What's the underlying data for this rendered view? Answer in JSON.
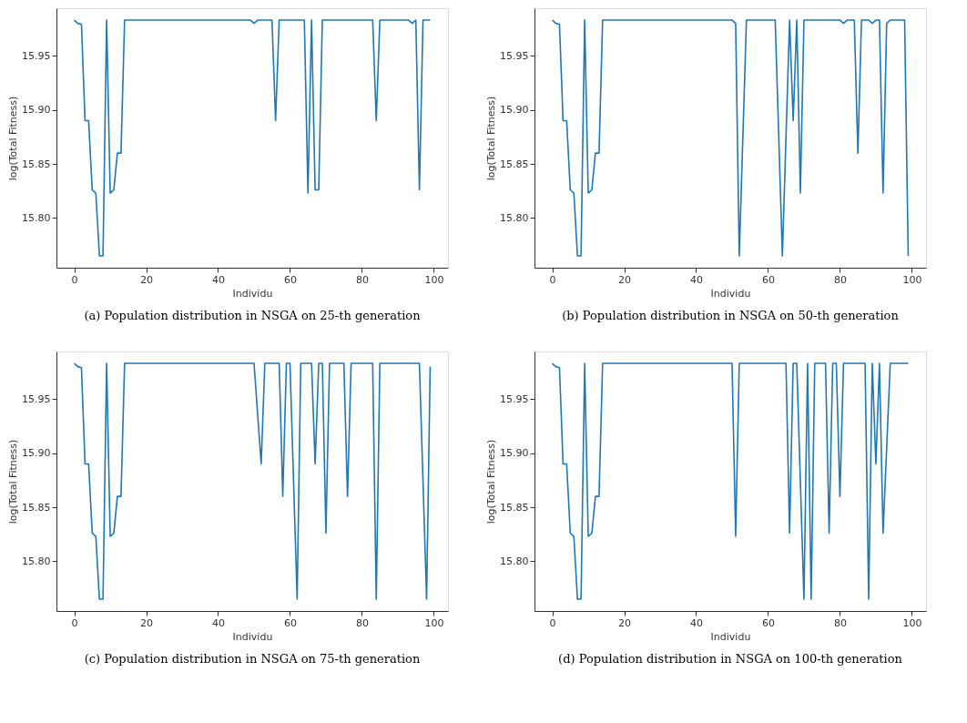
{
  "chart_data": [
    {
      "type": "line",
      "xlabel": "Individu",
      "ylabel": "log(Total Fitness)",
      "annotations": [
        "(a) Population distribution in NSGA on 25-th generation"
      ],
      "xlim": [
        -4.95,
        103.95
      ],
      "ylim": [
        15.754,
        15.994
      ],
      "xticks": [
        0,
        20,
        40,
        60,
        80,
        100
      ],
      "yticks": [
        {
          "value": 15.8,
          "label": "15.80"
        },
        {
          "value": 15.85,
          "label": "15.85"
        },
        {
          "value": 15.9,
          "label": "15.90"
        },
        {
          "value": 15.95,
          "label": "15.95"
        }
      ],
      "grid": false,
      "marker": "none",
      "line_style": "solid",
      "series": [
        {
          "color": "#1f77b4",
          "x": [
            0,
            1,
            2,
            3,
            4,
            5,
            6,
            7,
            8,
            9,
            10,
            11,
            12,
            13,
            14,
            49,
            50,
            51,
            55,
            56,
            57,
            64,
            65,
            66,
            67,
            68,
            69,
            83,
            84,
            85,
            93,
            94,
            95,
            96,
            97,
            99
          ],
          "values": [
            15.983,
            15.98,
            15.979,
            15.89,
            15.89,
            15.826,
            15.823,
            15.765,
            15.765,
            15.983,
            15.823,
            15.826,
            15.86,
            15.86,
            15.983,
            15.983,
            15.98,
            15.983,
            15.983,
            15.89,
            15.983,
            15.983,
            15.823,
            15.983,
            15.826,
            15.826,
            15.983,
            15.983,
            15.89,
            15.983,
            15.983,
            15.98,
            15.983,
            15.826,
            15.983,
            15.983
          ]
        }
      ]
    },
    {
      "type": "line",
      "xlabel": "Individu",
      "ylabel": "log(Total Fitness)",
      "annotations": [
        "(b) Population distribution in NSGA on 50-th generation"
      ],
      "xlim": [
        -4.95,
        103.95
      ],
      "ylim": [
        15.754,
        15.994
      ],
      "xticks": [
        0,
        20,
        40,
        60,
        80,
        100
      ],
      "yticks": [
        {
          "value": 15.8,
          "label": "15.80"
        },
        {
          "value": 15.85,
          "label": "15.85"
        },
        {
          "value": 15.9,
          "label": "15.90"
        },
        {
          "value": 15.95,
          "label": "15.95"
        }
      ],
      "grid": false,
      "marker": "none",
      "line_style": "solid",
      "series": [
        {
          "color": "#1f77b4",
          "x": [
            0,
            1,
            2,
            3,
            4,
            5,
            6,
            7,
            8,
            9,
            10,
            11,
            12,
            13,
            14,
            50,
            51,
            52,
            54,
            62,
            64,
            66,
            67,
            68,
            69,
            70,
            80,
            81,
            82,
            84,
            85,
            86,
            88,
            89,
            90,
            91,
            92,
            93,
            94,
            98,
            99
          ],
          "values": [
            15.983,
            15.98,
            15.979,
            15.89,
            15.89,
            15.826,
            15.823,
            15.765,
            15.765,
            15.983,
            15.823,
            15.826,
            15.86,
            15.86,
            15.983,
            15.983,
            15.98,
            15.765,
            15.983,
            15.983,
            15.765,
            15.983,
            15.89,
            15.983,
            15.823,
            15.983,
            15.983,
            15.98,
            15.983,
            15.983,
            15.86,
            15.983,
            15.983,
            15.98,
            15.983,
            15.983,
            15.823,
            15.98,
            15.983,
            15.983,
            15.765
          ]
        }
      ]
    },
    {
      "type": "line",
      "xlabel": "Individu",
      "ylabel": "log(Total Fitness)",
      "annotations": [
        "(c) Population distribution in NSGA on 75-th generation"
      ],
      "xlim": [
        -4.95,
        103.95
      ],
      "ylim": [
        15.754,
        15.994
      ],
      "xticks": [
        0,
        20,
        40,
        60,
        80,
        100
      ],
      "yticks": [
        {
          "value": 15.8,
          "label": "15.80"
        },
        {
          "value": 15.85,
          "label": "15.85"
        },
        {
          "value": 15.9,
          "label": "15.90"
        },
        {
          "value": 15.95,
          "label": "15.95"
        }
      ],
      "grid": false,
      "marker": "none",
      "line_style": "solid",
      "series": [
        {
          "color": "#1f77b4",
          "x": [
            0,
            1,
            2,
            3,
            4,
            5,
            6,
            7,
            8,
            9,
            10,
            11,
            12,
            13,
            14,
            50,
            52,
            53,
            57,
            58,
            59,
            60,
            62,
            63,
            66,
            67,
            68,
            69,
            70,
            71,
            75,
            76,
            77,
            83,
            84,
            85,
            96,
            98,
            99
          ],
          "values": [
            15.983,
            15.98,
            15.979,
            15.89,
            15.89,
            15.826,
            15.823,
            15.765,
            15.765,
            15.983,
            15.823,
            15.826,
            15.86,
            15.86,
            15.983,
            15.983,
            15.89,
            15.983,
            15.983,
            15.86,
            15.983,
            15.983,
            15.765,
            15.983,
            15.983,
            15.89,
            15.983,
            15.983,
            15.826,
            15.983,
            15.983,
            15.86,
            15.983,
            15.983,
            15.765,
            15.983,
            15.983,
            15.765,
            15.98
          ]
        }
      ]
    },
    {
      "type": "line",
      "xlabel": "Individu",
      "ylabel": "log(Total Fitness)",
      "annotations": [
        "(d) Population distribution in NSGA on 100-th generation"
      ],
      "xlim": [
        -4.95,
        103.95
      ],
      "ylim": [
        15.754,
        15.994
      ],
      "xticks": [
        0,
        20,
        40,
        60,
        80,
        100
      ],
      "yticks": [
        {
          "value": 15.8,
          "label": "15.80"
        },
        {
          "value": 15.85,
          "label": "15.85"
        },
        {
          "value": 15.9,
          "label": "15.90"
        },
        {
          "value": 15.95,
          "label": "15.95"
        }
      ],
      "grid": false,
      "marker": "none",
      "line_style": "solid",
      "series": [
        {
          "color": "#1f77b4",
          "x": [
            0,
            1,
            2,
            3,
            4,
            5,
            6,
            7,
            8,
            9,
            10,
            11,
            12,
            13,
            14,
            50,
            51,
            52,
            65,
            66,
            67,
            68,
            70,
            71,
            72,
            73,
            76,
            77,
            78,
            79,
            80,
            81,
            87,
            88,
            89,
            90,
            91,
            92,
            94,
            99
          ],
          "values": [
            15.983,
            15.98,
            15.979,
            15.89,
            15.89,
            15.826,
            15.823,
            15.765,
            15.765,
            15.983,
            15.823,
            15.826,
            15.86,
            15.86,
            15.983,
            15.983,
            15.823,
            15.983,
            15.983,
            15.826,
            15.983,
            15.983,
            15.765,
            15.983,
            15.765,
            15.983,
            15.983,
            15.826,
            15.983,
            15.983,
            15.86,
            15.983,
            15.983,
            15.765,
            15.983,
            15.89,
            15.983,
            15.826,
            15.983,
            15.983
          ]
        }
      ]
    }
  ]
}
